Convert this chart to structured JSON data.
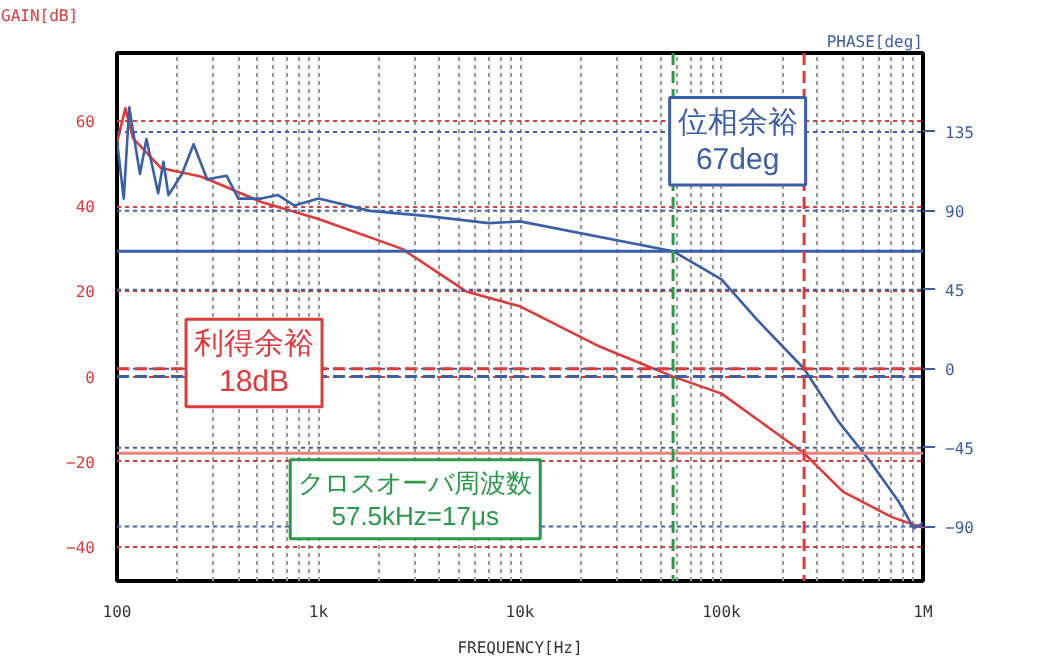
{
  "chart_data": {
    "type": "line",
    "xlabel": "FREQUENCY[Hz]",
    "ylabel": "GAIN[dB]",
    "y2label": "PHASE[deg]",
    "log": "x",
    "xlim": [
      100,
      1000000
    ],
    "xticks": [
      {
        "value": 100,
        "label": "100"
      },
      {
        "value": 1000,
        "label": "1k"
      },
      {
        "value": 10000,
        "label": "10k"
      },
      {
        "value": 100000,
        "label": "100k"
      },
      {
        "value": 1000000,
        "label": "1M"
      }
    ],
    "ylim": [
      -48,
      76
    ],
    "yticks": [
      -40,
      -20,
      0,
      20,
      40,
      60
    ],
    "y2lim": [
      -121,
      180
    ],
    "y2ticks": [
      -90,
      -45,
      0,
      45,
      90,
      135
    ],
    "grid": true,
    "marker": "none",
    "line_style": "solid",
    "series": [
      {
        "color": "#e03a3a",
        "x": [
          100,
          110,
          120,
          165,
          260,
          330,
          520,
          1000,
          2600,
          5400,
          10000,
          25000,
          57500,
          100000,
          150000,
          257000,
          400000,
          700000,
          1000000
        ],
        "values": [
          55,
          63,
          56,
          49,
          47,
          45,
          41,
          37,
          30,
          20,
          16.5,
          7,
          0,
          -4,
          -10,
          -18,
          -27,
          -33,
          -35.5
        ]
      },
      {
        "color": "#3a5fa8",
        "axis": "y2",
        "x": [
          100,
          108,
          115,
          130,
          140,
          160,
          170,
          180,
          210,
          240,
          280,
          350,
          400,
          520,
          630,
          760,
          1000,
          1800,
          3500,
          7000,
          10000,
          57500,
          100000,
          150000,
          257000,
          380000,
          540000,
          760000,
          900000,
          1000000
        ],
        "values": [
          130,
          97,
          149,
          111,
          131,
          100,
          118,
          99,
          111,
          128,
          108,
          110,
          97,
          97,
          99,
          93,
          97,
          90,
          87,
          83,
          84,
          67,
          51,
          28,
          0,
          -30,
          -52,
          -76,
          -91,
          -88
        ]
      }
    ],
    "ref_lines": [
      {
        "axis": "y",
        "value": 0,
        "color": "#3a5fa8",
        "line_style": "dashed"
      },
      {
        "axis": "y",
        "value": -18,
        "color": "#f08080",
        "line_style": "solid"
      },
      {
        "axis": "y2",
        "value": 67,
        "color": "#3a5fa8",
        "line_style": "solid"
      },
      {
        "axis": "y2",
        "value": 0,
        "color": "#e03a3a",
        "line_style": "dashed"
      },
      {
        "axis": "x",
        "value": 57500,
        "color": "#2a9a4a",
        "line_style": "dashed"
      },
      {
        "axis": "x",
        "value": 257000,
        "color": "#e03a3a",
        "line_style": "dashed"
      }
    ],
    "annotations": [
      "利得余裕\n18dB",
      "位相余裕\n67deg",
      "クロスオーバ周波数\n57.5kHz=17μs"
    ]
  }
}
